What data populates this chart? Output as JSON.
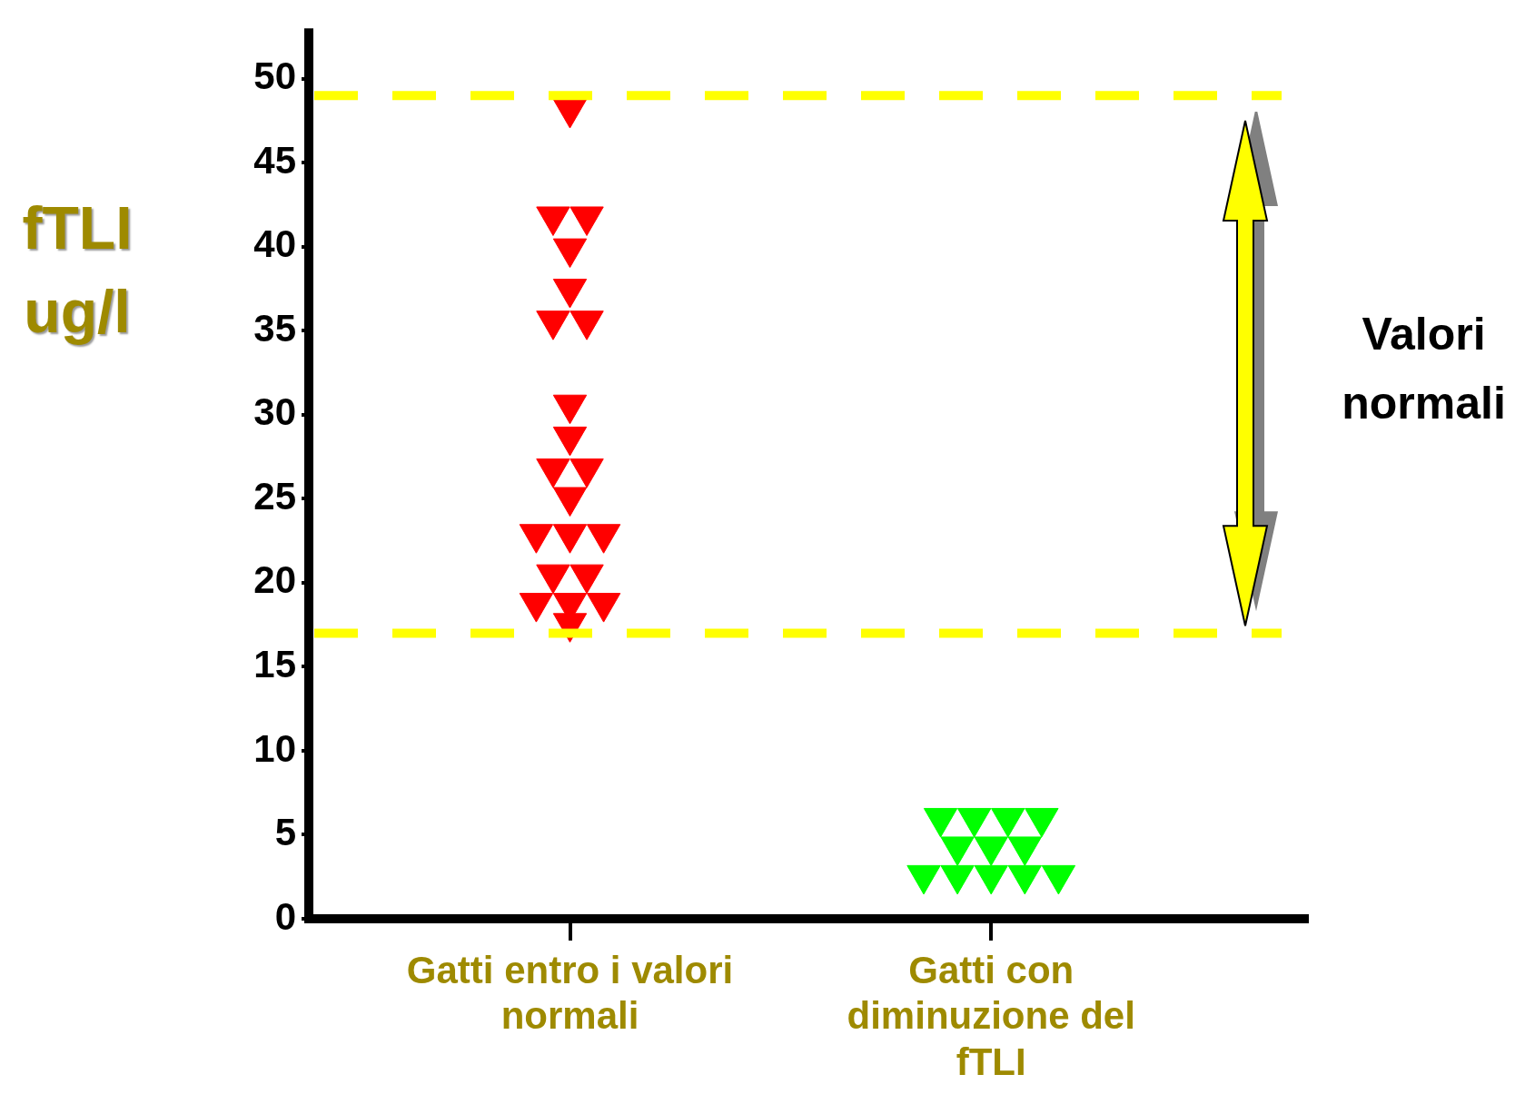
{
  "chart_data": {
    "type": "scatter",
    "ylabel": "fTLI ug/l",
    "categories": [
      "Gatti entro i valori normali",
      "Gatti con diminuzione del fTLI"
    ],
    "series": [
      {
        "color": "#ff0000",
        "x": [
          "Gatti entro i valori normali",
          "Gatti entro i valori normali",
          "Gatti entro i valori normali",
          "Gatti entro i valori normali",
          "Gatti entro i valori normali",
          "Gatti entro i valori normali",
          "Gatti entro i valori normali",
          "Gatti entro i valori normali",
          "Gatti entro i valori normali",
          "Gatti entro i valori normali",
          "Gatti entro i valori normali",
          "Gatti entro i valori normali",
          "Gatti entro i valori normali",
          "Gatti entro i valori normali",
          "Gatti entro i valori normali",
          "Gatti entro i valori normali",
          "Gatti entro i valori normali",
          "Gatti entro i valori normali",
          "Gatti entro i valori normali",
          "Gatti entro i valori normali",
          "Gatti entro i valori normali"
        ],
        "values": [
          48.2,
          41.8,
          41.8,
          39.9,
          37.5,
          35.6,
          35.6,
          30.6,
          28.7,
          26.8,
          26.8,
          25.1,
          22.9,
          22.9,
          22.9,
          20.5,
          20.5,
          18.8,
          18.8,
          18.8,
          17.6
        ]
      },
      {
        "color": "#00ff00",
        "x": [
          "Gatti con diminuzione del fTLI",
          "Gatti con diminuzione del fTLI",
          "Gatti con diminuzione del fTLI",
          "Gatti con diminuzione del fTLI",
          "Gatti con diminuzione del fTLI",
          "Gatti con diminuzione del fTLI",
          "Gatti con diminuzione del fTLI",
          "Gatti con diminuzione del fTLI",
          "Gatti con diminuzione del fTLI",
          "Gatti con diminuzione del fTLI",
          "Gatti con diminuzione del fTLI",
          "Gatti con diminuzione del fTLI"
        ],
        "values": [
          6.0,
          6.0,
          6.0,
          6.0,
          4.3,
          4.3,
          4.3,
          2.6,
          2.6,
          2.6,
          2.6,
          2.6
        ]
      }
    ],
    "ylim": [
      0,
      53
    ],
    "yticks": [
      0,
      5,
      10,
      15,
      20,
      25,
      30,
      35,
      40,
      45,
      50
    ],
    "marker": "triangle",
    "ref_lines": [
      {
        "axis": "y",
        "value": 49,
        "color": "#ffff00",
        "line_style": "dashed"
      },
      {
        "axis": "y",
        "value": 17,
        "color": "#ffff00",
        "line_style": "dashed"
      }
    ],
    "annotations": [
      "Valori normali"
    ],
    "legend": false
  }
}
